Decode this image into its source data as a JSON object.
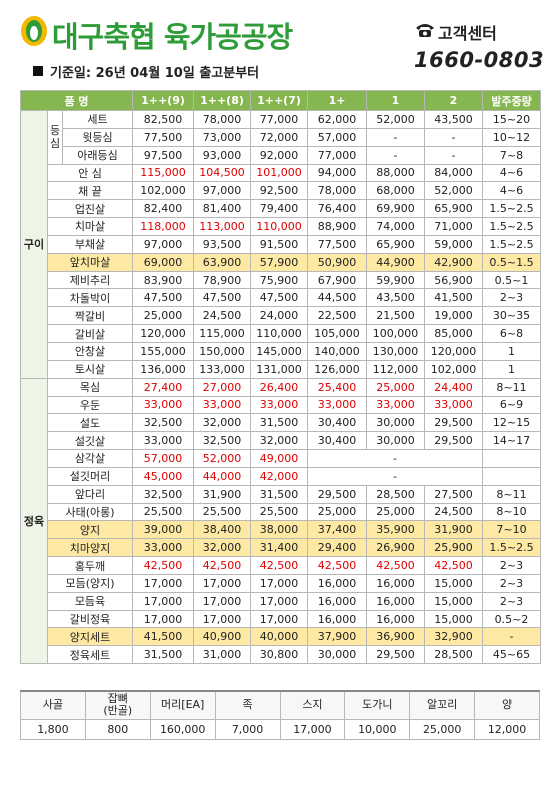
{
  "header": {
    "brand": "대구축협 육가공공장",
    "service_label": "고객센터",
    "phone": "1660-0803",
    "notice": "기준일: 26년 04월 10일 출고분부터"
  },
  "table": {
    "columns": [
      "품 명",
      "1++(9)",
      "1++(8)",
      "1++(7)",
      "1+",
      "1",
      "2",
      "발주중량"
    ],
    "groups": [
      {
        "name": "구이",
        "items": [
          {
            "name": "등심",
            "rows": [
              {
                "name": "세트",
                "prices": [
                  "82,500",
                  "78,000",
                  "77,000",
                  "62,000",
                  "52,000",
                  "43,500"
                ],
                "weight": "15~20"
              },
              {
                "name": "윗등심",
                "prices": [
                  "77,500",
                  "73,000",
                  "72,000",
                  "57,000",
                  "-",
                  "-"
                ],
                "weight": "10~12"
              },
              {
                "name": "아래등심",
                "prices": [
                  "97,500",
                  "93,000",
                  "92,000",
                  "77,000",
                  "-",
                  "-"
                ],
                "weight": "7~8"
              }
            ]
          },
          {
            "name": "안 심",
            "prices": [
              "115,000",
              "104,500",
              "101,000",
              "94,000",
              "88,000",
              "84,000"
            ],
            "weight": "4~6",
            "red": [
              0,
              1,
              2
            ]
          },
          {
            "name": "채 끝",
            "prices": [
              "102,000",
              "97,000",
              "92,500",
              "78,000",
              "68,000",
              "52,000"
            ],
            "weight": "4~6"
          },
          {
            "name": "업진살",
            "prices": [
              "82,400",
              "81,400",
              "79,400",
              "76,400",
              "69,900",
              "65,900"
            ],
            "weight": "1.5~2.5"
          },
          {
            "name": "치마살",
            "prices": [
              "118,000",
              "113,000",
              "110,000",
              "88,900",
              "74,000",
              "71,000"
            ],
            "weight": "1.5~2.5",
            "red": [
              0,
              1,
              2
            ]
          },
          {
            "name": "부채살",
            "prices": [
              "97,000",
              "93,500",
              "91,500",
              "77,500",
              "65,900",
              "59,000"
            ],
            "weight": "1.5~2.5"
          },
          {
            "name": "앞치마살",
            "prices": [
              "69,000",
              "63,900",
              "57,900",
              "50,900",
              "44,900",
              "42,900"
            ],
            "weight": "0.5~1.5",
            "highlight": true
          },
          {
            "name": "제비추리",
            "prices": [
              "83,900",
              "78,900",
              "75,900",
              "67,900",
              "59,900",
              "56,900"
            ],
            "weight": "0.5~1"
          },
          {
            "name": "차돌박이",
            "prices": [
              "47,500",
              "47,500",
              "47,500",
              "44,500",
              "43,500",
              "41,500"
            ],
            "weight": "2~3"
          },
          {
            "name": "짝갈비",
            "prices": [
              "25,000",
              "24,500",
              "24,000",
              "22,500",
              "21,500",
              "19,000"
            ],
            "weight": "30~35"
          },
          {
            "name": "갈비살",
            "prices": [
              "120,000",
              "115,000",
              "110,000",
              "105,000",
              "100,000",
              "85,000"
            ],
            "weight": "6~8"
          },
          {
            "name": "안창살",
            "prices": [
              "155,000",
              "150,000",
              "145,000",
              "140,000",
              "130,000",
              "120,000"
            ],
            "weight": "1"
          },
          {
            "name": "토시살",
            "prices": [
              "136,000",
              "133,000",
              "131,000",
              "126,000",
              "112,000",
              "102,000"
            ],
            "weight": "1"
          }
        ]
      },
      {
        "name": "정육",
        "items": [
          {
            "name": "목심",
            "prices": [
              "27,400",
              "27,000",
              "26,400",
              "25,400",
              "25,000",
              "24,400"
            ],
            "weight": "8~11",
            "red": [
              0,
              1,
              2,
              3,
              4,
              5
            ]
          },
          {
            "name": "우둔",
            "prices": [
              "33,000",
              "33,000",
              "33,000",
              "33,000",
              "33,000",
              "33,000"
            ],
            "weight": "6~9",
            "red": [
              0,
              1,
              2,
              3,
              4,
              5
            ]
          },
          {
            "name": "설도",
            "prices": [
              "32,500",
              "32,000",
              "31,500",
              "30,400",
              "30,000",
              "29,500"
            ],
            "weight": "12~15"
          },
          {
            "name": "설깃살",
            "prices": [
              "33,000",
              "32,500",
              "32,000",
              "30,400",
              "30,000",
              "29,500"
            ],
            "weight": "14~17"
          },
          {
            "name": "삼각살",
            "prices": [
              "57,000",
              "52,000",
              "49,000",
              "-"
            ],
            "red": [
              0,
              1,
              2
            ]
          },
          {
            "name": "설깃머리",
            "prices": [
              "45,000",
              "44,000",
              "42,000",
              "-"
            ],
            "red": [
              0,
              1,
              2
            ]
          },
          {
            "name": "앞다리",
            "prices": [
              "32,500",
              "31,900",
              "31,500",
              "29,500",
              "28,500",
              "27,500"
            ],
            "weight": "8~11"
          },
          {
            "name": "사태(아롱)",
            "prices": [
              "25,500",
              "25,500",
              "25,500",
              "25,000",
              "25,000",
              "24,500"
            ],
            "weight": "8~10"
          },
          {
            "name": "양지",
            "prices": [
              "39,000",
              "38,400",
              "38,000",
              "37,400",
              "35,900",
              "31,900"
            ],
            "weight": "7~10",
            "highlight": true
          },
          {
            "name": "치마양지",
            "prices": [
              "33,000",
              "32,000",
              "31,400",
              "29,400",
              "26,900",
              "25,900"
            ],
            "weight": "1.5~2.5",
            "highlight": true
          },
          {
            "name": "홍두깨",
            "prices": [
              "42,500",
              "42,500",
              "42,500",
              "42,500",
              "42,500",
              "42,500"
            ],
            "weight": "2~3",
            "red": [
              0,
              1,
              2,
              3,
              4,
              5
            ]
          },
          {
            "name": "모듬(양지)",
            "prices": [
              "17,000",
              "17,000",
              "17,000",
              "16,000",
              "16,000",
              "15,000"
            ],
            "weight": "2~3"
          },
          {
            "name": "모듬육",
            "prices": [
              "17,000",
              "17,000",
              "17,000",
              "16,000",
              "16,000",
              "15,000"
            ],
            "weight": "2~3"
          },
          {
            "name": "갈비정육",
            "prices": [
              "17,000",
              "17,000",
              "17,000",
              "16,000",
              "16,000",
              "15,000"
            ],
            "weight": "0.5~2"
          },
          {
            "name": "양지세트",
            "prices": [
              "41,500",
              "40,900",
              "40,000",
              "37,900",
              "36,900",
              "32,900"
            ],
            "weight": "-",
            "highlight": true
          },
          {
            "name": "정육세트",
            "prices": [
              "31,500",
              "31,000",
              "30,800",
              "30,000",
              "29,500",
              "28,500"
            ],
            "weight": "45~65"
          }
        ]
      }
    ]
  },
  "extras": {
    "headers": [
      "사골",
      "잡뼈\n(반골)",
      "머리[EA]",
      "족",
      "스지",
      "도가니",
      "알꼬리",
      "양"
    ],
    "values": [
      "1,800",
      "800",
      "160,000",
      "7,000",
      "17,000",
      "10,000",
      "25,000",
      "12,000"
    ]
  }
}
